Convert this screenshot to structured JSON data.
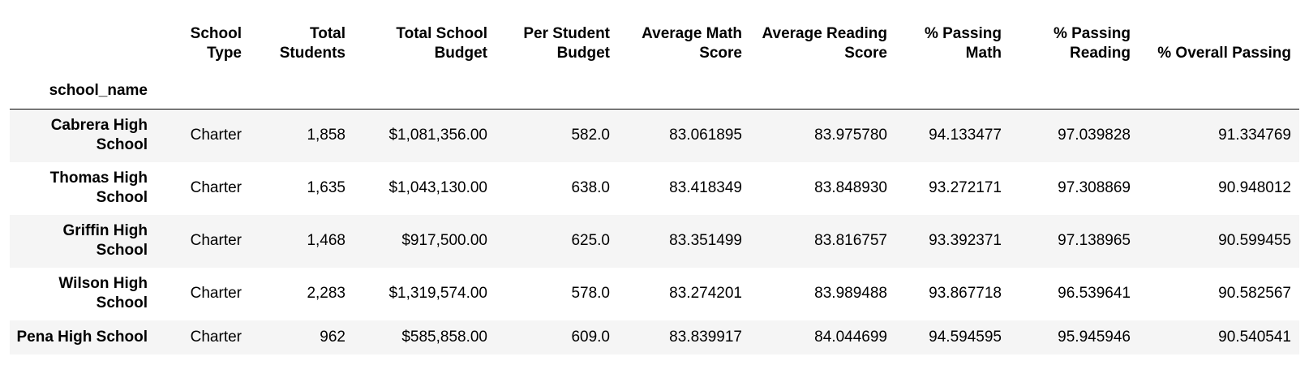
{
  "table": {
    "index_name": "school_name",
    "columns": [
      "School Type",
      "Total Students",
      "Total School Budget",
      "Per Student Budget",
      "Average Math Score",
      "Average Reading Score",
      "% Passing Math",
      "% Passing Reading",
      "% Overall Passing"
    ],
    "rows": [
      {
        "school_name": "Cabrera High School",
        "cells": [
          "Charter",
          "1,858",
          "$1,081,356.00",
          "582.0",
          "83.061895",
          "83.975780",
          "94.133477",
          "97.039828",
          "91.334769"
        ]
      },
      {
        "school_name": "Thomas High School",
        "cells": [
          "Charter",
          "1,635",
          "$1,043,130.00",
          "638.0",
          "83.418349",
          "83.848930",
          "93.272171",
          "97.308869",
          "90.948012"
        ]
      },
      {
        "school_name": "Griffin High School",
        "cells": [
          "Charter",
          "1,468",
          "$917,500.00",
          "625.0",
          "83.351499",
          "83.816757",
          "93.392371",
          "97.138965",
          "90.599455"
        ]
      },
      {
        "school_name": "Wilson High School",
        "cells": [
          "Charter",
          "2,283",
          "$1,319,574.00",
          "578.0",
          "83.274201",
          "83.989488",
          "93.867718",
          "96.539641",
          "90.582567"
        ]
      },
      {
        "school_name": "Pena High School",
        "cells": [
          "Charter",
          "962",
          "$585,858.00",
          "609.0",
          "83.839917",
          "84.044699",
          "94.594595",
          "95.945946",
          "90.540541"
        ]
      }
    ]
  },
  "colors": {
    "stripe": "#f5f5f5",
    "background": "#ffffff",
    "rule": "#000000"
  }
}
